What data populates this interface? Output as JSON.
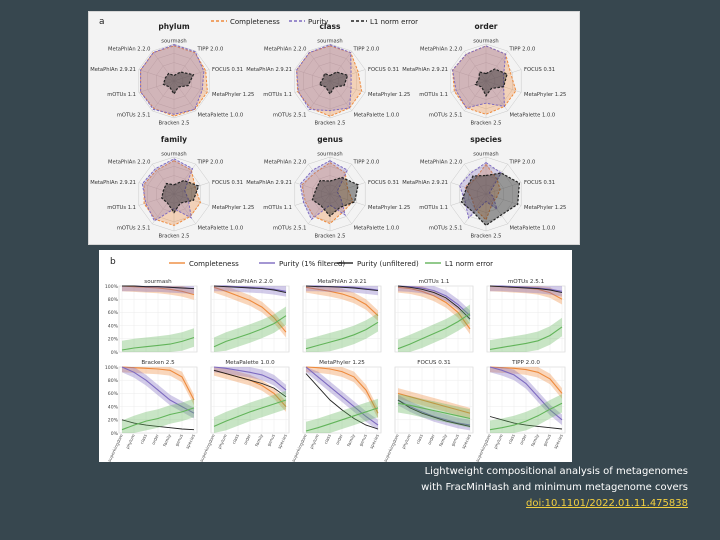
{
  "panel_a": {
    "letter": "a",
    "legend": [
      "Completeness",
      "Purity",
      "L1 norm error"
    ],
    "axes": [
      "sourmash",
      "TIPP 2.0.0",
      "FOCUS 0.31",
      "MetaPhyler 1.25",
      "MetaPalette 1.0.0",
      "Bracken 2.5",
      "mOTUs 2.5.1",
      "mOTUs 1.1",
      "MetaPhlAn 2.9.21",
      "MetaPhlAn 2.2.0"
    ],
    "ranks": [
      "phylum",
      "class",
      "order",
      "family",
      "genus",
      "species"
    ]
  },
  "panel_b": {
    "letter": "b",
    "legend": [
      "Completeness",
      "Purity (1% filtered)",
      "Purity (unfiltered)",
      "L1 norm error"
    ],
    "y_ticks": [
      "100%",
      "80%",
      "60%",
      "40%",
      "20%",
      "0%"
    ],
    "x_ticks": [
      "superkingdom",
      "phylum",
      "class",
      "order",
      "family",
      "genus",
      "species"
    ],
    "tools": [
      "sourmash",
      "MetaPhlAn 2.2.0",
      "MetaPhlAn 2.9.21",
      "mOTUs 1.1",
      "mOTUs 2.5.1",
      "Bracken 2.5",
      "MetaPalette 1.0.0",
      "MetaPhyler 1.25",
      "FOCUS 0.31",
      "TIPP 2.0.0"
    ]
  },
  "colors": {
    "completeness": "#ee8a3c",
    "purity": "#7d6ac0",
    "unfiltered": "#222222",
    "l1": "#62b45a"
  },
  "chart_data": [
    {
      "type": "radar",
      "scale": [
        0,
        1
      ],
      "axes": [
        "sourmash",
        "TIPP 2.0.0",
        "FOCUS 0.31",
        "MetaPhyler 1.25",
        "MetaPalette 1.0.0",
        "Bracken 2.5",
        "mOTUs 2.5.1",
        "mOTUs 1.1",
        "MetaPhlAn 2.9.21",
        "MetaPhlAn 2.2.0"
      ],
      "panels": [
        {
          "title": "phylum",
          "series": [
            {
              "name": "Completeness",
              "values": [
                0.95,
                0.95,
                0.9,
                0.95,
                0.95,
                0.95,
                0.92,
                0.95,
                0.95,
                0.95
              ]
            },
            {
              "name": "Purity",
              "values": [
                0.98,
                0.98,
                0.85,
                0.8,
                0.95,
                0.9,
                0.95,
                0.95,
                0.95,
                0.95
              ]
            },
            {
              "name": "L1 norm error",
              "values": [
                0.15,
                0.3,
                0.55,
                0.4,
                0.2,
                0.35,
                0.2,
                0.3,
                0.25,
                0.25
              ]
            }
          ]
        },
        {
          "title": "class",
          "series": [
            {
              "name": "Completeness",
              "values": [
                0.95,
                0.95,
                0.8,
                0.9,
                0.9,
                0.95,
                0.9,
                0.92,
                0.95,
                0.95
              ]
            },
            {
              "name": "Purity",
              "values": [
                0.98,
                0.95,
                0.6,
                0.6,
                0.9,
                0.8,
                0.95,
                0.9,
                0.95,
                0.95
              ]
            },
            {
              "name": "L1 norm error",
              "values": [
                0.15,
                0.3,
                0.5,
                0.4,
                0.2,
                0.35,
                0.2,
                0.3,
                0.2,
                0.25
              ]
            }
          ]
        },
        {
          "title": "order",
          "series": [
            {
              "name": "Completeness",
              "values": [
                0.95,
                0.9,
                0.7,
                0.85,
                0.85,
                0.9,
                0.9,
                0.9,
                0.95,
                0.9
              ]
            },
            {
              "name": "Purity",
              "values": [
                0.95,
                0.9,
                0.5,
                0.5,
                0.85,
                0.6,
                0.9,
                0.85,
                0.95,
                0.9
              ]
            },
            {
              "name": "L1 norm error",
              "values": [
                0.2,
                0.4,
                0.6,
                0.5,
                0.25,
                0.4,
                0.2,
                0.3,
                0.2,
                0.3
              ]
            }
          ]
        },
        {
          "title": "family",
          "series": [
            {
              "name": "Completeness",
              "values": [
                0.9,
                0.8,
                0.6,
                0.75,
                0.75,
                0.85,
                0.85,
                0.85,
                0.85,
                0.8
              ]
            },
            {
              "name": "Purity",
              "values": [
                0.95,
                0.85,
                0.3,
                0.4,
                0.8,
                0.4,
                0.9,
                0.8,
                0.9,
                0.85
              ]
            },
            {
              "name": "L1 norm error",
              "values": [
                0.25,
                0.45,
                0.7,
                0.55,
                0.3,
                0.5,
                0.3,
                0.35,
                0.3,
                0.35
              ]
            }
          ]
        },
        {
          "title": "genus",
          "series": [
            {
              "name": "Completeness",
              "values": [
                0.85,
                0.7,
                0.5,
                0.65,
                0.6,
                0.8,
                0.75,
                0.7,
                0.8,
                0.7
              ]
            },
            {
              "name": "Purity",
              "values": [
                0.9,
                0.8,
                0.2,
                0.3,
                0.7,
                0.3,
                0.85,
                0.75,
                0.85,
                0.8
              ]
            },
            {
              "name": "L1 norm error",
              "values": [
                0.35,
                0.55,
                0.8,
                0.7,
                0.45,
                0.6,
                0.4,
                0.5,
                0.4,
                0.45
              ]
            }
          ]
        },
        {
          "title": "species",
          "series": [
            {
              "name": "Completeness",
              "values": [
                0.8,
                0.5,
                0.4,
                0.3,
                0.3,
                0.7,
                0.5,
                0.4,
                0.6,
                0.5
              ]
            },
            {
              "name": "Purity",
              "values": [
                0.85,
                0.7,
                0.1,
                0.2,
                0.5,
                0.2,
                0.8,
                0.6,
                0.75,
                0.7
              ]
            },
            {
              "name": "L1 norm error",
              "values": [
                0.5,
                0.7,
                0.95,
                0.9,
                0.7,
                0.85,
                0.6,
                0.7,
                0.55,
                0.6
              ]
            }
          ]
        }
      ]
    },
    {
      "type": "line",
      "x": [
        "superkingdom",
        "phylum",
        "class",
        "order",
        "family",
        "genus",
        "species"
      ],
      "ylim": [
        0,
        100
      ],
      "y_unit": "%",
      "panels": [
        {
          "title": "sourmash",
          "series": [
            {
              "name": "Completeness",
              "values": [
                100,
                99,
                98,
                97,
                95,
                92,
                87
              ]
            },
            {
              "name": "Purity (1% filtered)",
              "values": [
                100,
                100,
                99,
                99,
                98,
                97,
                96
              ]
            },
            {
              "name": "Purity (unfiltered)",
              "values": [
                100,
                100,
                99,
                99,
                98,
                97,
                96
              ]
            },
            {
              "name": "L1 norm error",
              "values": [
                3,
                6,
                8,
                10,
                12,
                16,
                22
              ]
            }
          ]
        },
        {
          "title": "MetaPhlAn 2.2.0",
          "series": [
            {
              "name": "Completeness",
              "values": [
                98,
                92,
                85,
                78,
                68,
                52,
                30
              ]
            },
            {
              "name": "Purity (1% filtered)",
              "values": [
                100,
                100,
                99,
                98,
                97,
                95,
                92
              ]
            },
            {
              "name": "Purity (unfiltered)",
              "values": [
                100,
                99,
                98,
                97,
                96,
                94,
                90
              ]
            },
            {
              "name": "L1 norm error",
              "values": [
                8,
                16,
                22,
                28,
                35,
                43,
                55
              ]
            }
          ]
        },
        {
          "title": "MetaPhlAn 2.9.21",
          "series": [
            {
              "name": "Completeness",
              "values": [
                98,
                95,
                92,
                88,
                82,
                72,
                55
              ]
            },
            {
              "name": "Purity (1% filtered)",
              "values": [
                100,
                100,
                99,
                99,
                98,
                96,
                94
              ]
            },
            {
              "name": "Purity (unfiltered)",
              "values": [
                100,
                99,
                99,
                98,
                97,
                95,
                93
              ]
            },
            {
              "name": "L1 norm error",
              "values": [
                5,
                10,
                15,
                20,
                26,
                34,
                45
              ]
            }
          ]
        },
        {
          "title": "mOTUs 1.1",
          "series": [
            {
              "name": "Completeness",
              "values": [
                98,
                96,
                92,
                85,
                75,
                60,
                35
              ]
            },
            {
              "name": "Purity (1% filtered)",
              "values": [
                100,
                99,
                97,
                93,
                85,
                72,
                55
              ]
            },
            {
              "name": "Purity (unfiltered)",
              "values": [
                100,
                98,
                95,
                90,
                82,
                68,
                50
              ]
            },
            {
              "name": "L1 norm error",
              "values": [
                5,
                12,
                20,
                28,
                36,
                46,
                58
              ]
            }
          ]
        },
        {
          "title": "mOTUs 2.5.1",
          "series": [
            {
              "name": "Completeness",
              "values": [
                100,
                99,
                98,
                97,
                95,
                90,
                80
              ]
            },
            {
              "name": "Purity (1% filtered)",
              "values": [
                100,
                100,
                99,
                98,
                97,
                95,
                92
              ]
            },
            {
              "name": "Purity (unfiltered)",
              "values": [
                100,
                99,
                98,
                97,
                96,
                94,
                90
              ]
            },
            {
              "name": "L1 norm error",
              "values": [
                4,
                7,
                10,
                13,
                17,
                25,
                38
              ]
            }
          ]
        },
        {
          "title": "Bracken 2.5",
          "series": [
            {
              "name": "Completeness",
              "values": [
                100,
                99,
                98,
                97,
                95,
                85,
                50
              ]
            },
            {
              "name": "Purity (1% filtered)",
              "values": [
                100,
                92,
                80,
                65,
                50,
                40,
                30
              ]
            },
            {
              "name": "Purity (unfiltered)",
              "values": [
                20,
                15,
                12,
                10,
                8,
                6,
                5
              ]
            },
            {
              "name": "L1 norm error",
              "values": [
                5,
                12,
                18,
                22,
                28,
                32,
                38
              ]
            }
          ]
        },
        {
          "title": "MetaPalette 1.0.0",
          "series": [
            {
              "name": "Completeness",
              "values": [
                95,
                90,
                85,
                80,
                72,
                60,
                40
              ]
            },
            {
              "name": "Purity (1% filtered)",
              "values": [
                100,
                98,
                95,
                92,
                88,
                80,
                65
              ]
            },
            {
              "name": "Purity (unfiltered)",
              "values": [
                95,
                90,
                85,
                80,
                75,
                68,
                55
              ]
            },
            {
              "name": "L1 norm error",
              "values": [
                10,
                18,
                25,
                32,
                38,
                44,
                50
              ]
            }
          ]
        },
        {
          "title": "MetaPhyler 1.25",
          "series": [
            {
              "name": "Completeness",
              "values": [
                100,
                99,
                97,
                93,
                85,
                65,
                30
              ]
            },
            {
              "name": "Purity (1% filtered)",
              "values": [
                100,
                85,
                70,
                55,
                40,
                25,
                12
              ]
            },
            {
              "name": "Purity (unfiltered)",
              "values": [
                90,
                70,
                50,
                35,
                22,
                12,
                6
              ]
            },
            {
              "name": "L1 norm error",
              "values": [
                3,
                8,
                14,
                20,
                26,
                32,
                38
              ]
            }
          ]
        },
        {
          "title": "FOCUS 0.31",
          "series": [
            {
              "name": "Completeness",
              "values": [
                60,
                55,
                50,
                45,
                40,
                35,
                30
              ]
            },
            {
              "name": "Purity (1% filtered)",
              "values": [
                50,
                40,
                32,
                25,
                20,
                15,
                12
              ]
            },
            {
              "name": "Purity (unfiltered)",
              "values": [
                50,
                38,
                30,
                24,
                18,
                14,
                10
              ]
            },
            {
              "name": "L1 norm error",
              "values": [
                45,
                42,
                38,
                34,
                30,
                26,
                22
              ]
            }
          ]
        },
        {
          "title": "TIPP 2.0.0",
          "series": [
            {
              "name": "Completeness",
              "values": [
                100,
                99,
                98,
                96,
                92,
                82,
                60
              ]
            },
            {
              "name": "Purity (1% filtered)",
              "values": [
                100,
                95,
                88,
                75,
                55,
                35,
                20
              ]
            },
            {
              "name": "Purity (unfiltered)",
              "values": [
                25,
                20,
                15,
                12,
                10,
                8,
                6
              ]
            },
            {
              "name": "L1 norm error",
              "values": [
                5,
                8,
                12,
                18,
                26,
                36,
                45
              ]
            }
          ]
        }
      ]
    }
  ],
  "caption": {
    "line1": "Lightweight compositional analysis of metagenomes",
    "line2": "with FracMinHash and minimum metagenome covers",
    "doi": "doi:10.1101/2022.01.11.475838"
  }
}
